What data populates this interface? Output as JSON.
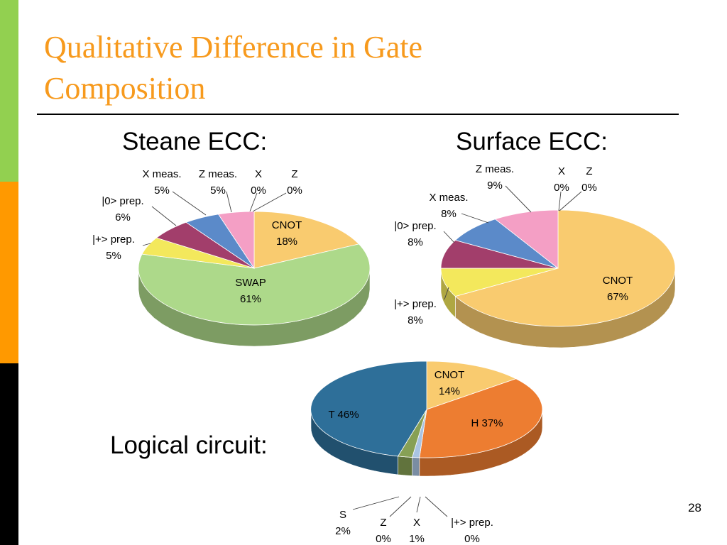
{
  "slide": {
    "title_line1": "Qualitative Difference in Gate",
    "title_line2": "Composition",
    "page_number": "28",
    "accent_colors": [
      "#92d050",
      "#ff9900",
      "#000000"
    ],
    "title_color": "#f79a1d"
  },
  "chart_data": [
    {
      "type": "pie",
      "title": "Steane ECC:",
      "slices": [
        {
          "label": "CNOT",
          "value": 18,
          "value_label": "18%",
          "color": "#f9cb6f"
        },
        {
          "label": "SWAP",
          "value": 61,
          "value_label": "61%",
          "color": "#add98a"
        },
        {
          "label": "|+> prep.",
          "value": 5,
          "value_label": "5%",
          "color": "#f3e85c"
        },
        {
          "label": "|0> prep.",
          "value": 6,
          "value_label": "6%",
          "color": "#a23e6b"
        },
        {
          "label": "X meas.",
          "value": 5,
          "value_label": "5%",
          "color": "#5b8ac9"
        },
        {
          "label": "Z meas.",
          "value": 5,
          "value_label": "5%",
          "color": "#f49fc5"
        },
        {
          "label": "X",
          "value": 0,
          "value_label": "0%",
          "color": "#8fa9c8"
        },
        {
          "label": "Z",
          "value": 0,
          "value_label": "0%",
          "color": "#7f7f7f"
        }
      ]
    },
    {
      "type": "pie",
      "title": "Surface ECC:",
      "slices": [
        {
          "label": "CNOT",
          "value": 67,
          "value_label": "67%",
          "color": "#f9cb6f"
        },
        {
          "label": "|+> prep.",
          "value": 8,
          "value_label": "8%",
          "color": "#f3e85c"
        },
        {
          "label": "|0> prep.",
          "value": 8,
          "value_label": "8%",
          "color": "#a23e6b"
        },
        {
          "label": "X meas.",
          "value": 8,
          "value_label": "8%",
          "color": "#5b8ac9"
        },
        {
          "label": "Z meas.",
          "value": 9,
          "value_label": "9%",
          "color": "#f49fc5"
        },
        {
          "label": "X",
          "value": 0,
          "value_label": "0%",
          "color": "#8fa9c8"
        },
        {
          "label": "Z",
          "value": 0,
          "value_label": "0%",
          "color": "#7f7f7f"
        }
      ]
    },
    {
      "type": "pie",
      "title": "Logical circuit:",
      "slices": [
        {
          "label": "CNOT",
          "value": 14,
          "value_label": "14%",
          "color": "#f9cb6f"
        },
        {
          "label": "H",
          "value": 37,
          "value_label": "37%",
          "color": "#ed7d31"
        },
        {
          "label": "|+> prep.",
          "value": 0,
          "value_label": "0%",
          "color": "#d9d9d9"
        },
        {
          "label": "X",
          "value": 1,
          "value_label": "1%",
          "color": "#a9c4e2"
        },
        {
          "label": "Z",
          "value": 0,
          "value_label": "0%",
          "color": "#8b7fb0"
        },
        {
          "label": "S",
          "value": 2,
          "value_label": "2%",
          "color": "#87a055"
        },
        {
          "label": "T",
          "value": 46,
          "value_label": "46%",
          "color": "#2e6f99"
        }
      ]
    }
  ]
}
